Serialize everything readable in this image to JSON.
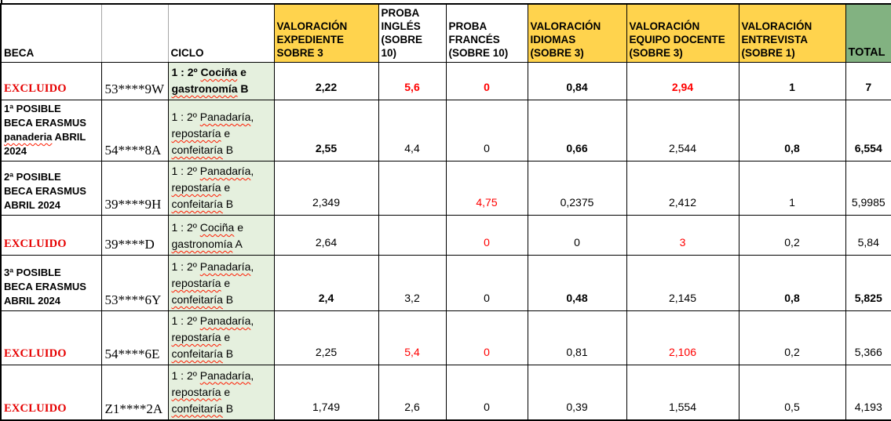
{
  "colors": {
    "header_yellow": "#FFD34D",
    "header_green": "#82B281",
    "ciclo_green": "#E5F0DE",
    "value_red": "#FF0000",
    "excluded_red": "#E60000",
    "text_black": "#000000"
  },
  "table": {
    "columns": [
      {
        "key": "beca",
        "label_lines": [
          "BECA"
        ],
        "bg": "#FFFFFF"
      },
      {
        "key": "id",
        "label_lines": [
          ""
        ],
        "bg": "#FFFFFF"
      },
      {
        "key": "ciclo",
        "label_lines": [
          "CICLO"
        ],
        "bg": "#FFFFFF"
      },
      {
        "key": "expediente",
        "label_lines": [
          "VALORACIÓN",
          "EXPEDIENTE",
          "SOBRE 3"
        ],
        "bg": "#FFD34D"
      },
      {
        "key": "ingles",
        "label_lines": [
          "PROBA",
          "INGLÉS",
          "(SOBRE",
          "10)"
        ],
        "bg": "#FFFFFF"
      },
      {
        "key": "frances",
        "label_lines": [
          "PROBA",
          "FRANCÉS",
          "(SOBRE 10)"
        ],
        "bg": "#FFFFFF"
      },
      {
        "key": "idiomas",
        "label_lines": [
          "VALORACIÓN",
          "IDIOMAS",
          "(SOBRE 3)"
        ],
        "bg": "#FFD34D"
      },
      {
        "key": "equipo",
        "label_lines": [
          "VALORACIÓN",
          "EQUIPO DOCENTE",
          "(SOBRE 3)"
        ],
        "bg": "#FFD34D"
      },
      {
        "key": "entrevista",
        "label_lines": [
          "VALORACIÓN",
          "ENTREVISTA",
          "(SOBRE 1)"
        ],
        "bg": "#FFD34D"
      },
      {
        "key": "total",
        "label_lines": [
          "TOTAL"
        ],
        "bg": "#82B281"
      }
    ],
    "rows": [
      {
        "beca": {
          "lines": [
            "EXCLUIDO"
          ],
          "excluded": true,
          "misspelled": []
        },
        "id": "53****9W",
        "ciclo": {
          "lines": [
            "1 : 2º Cociña e",
            "gastronomía B"
          ],
          "bold": true,
          "misspelled": [
            "Cociña",
            "gastronomía"
          ]
        },
        "scores": {
          "expediente": {
            "v": "2,22",
            "bold": true,
            "red": false
          },
          "ingles": {
            "v": "5,6",
            "bold": true,
            "red": true
          },
          "frances": {
            "v": "0",
            "bold": true,
            "red": true
          },
          "idiomas": {
            "v": "0,84",
            "bold": true,
            "red": false
          },
          "equipo": {
            "v": "2,94",
            "bold": true,
            "red": true
          },
          "entrevista": {
            "v": "1",
            "bold": true,
            "red": false
          },
          "total": {
            "v": "7",
            "bold": true,
            "red": false
          }
        }
      },
      {
        "beca": {
          "lines": [
            "1ª POSIBLE",
            "BECA ERASMUS",
            "panaderia ABRIL",
            "2024"
          ],
          "excluded": false,
          "misspelled": [
            "panaderia"
          ]
        },
        "id": "54****8A",
        "ciclo": {
          "lines": [
            "1 : 2º Panadaría,",
            "repostaría e",
            "confeitaría B"
          ],
          "bold": false,
          "misspelled": [
            "Panadaría",
            "repostaría",
            "confeitaría"
          ]
        },
        "scores": {
          "expediente": {
            "v": "2,55",
            "bold": true,
            "red": false
          },
          "ingles": {
            "v": "4,4",
            "bold": false,
            "red": false
          },
          "frances": {
            "v": "0",
            "bold": false,
            "red": false
          },
          "idiomas": {
            "v": "0,66",
            "bold": true,
            "red": false
          },
          "equipo": {
            "v": "2,544",
            "bold": false,
            "red": false
          },
          "entrevista": {
            "v": "0,8",
            "bold": true,
            "red": false
          },
          "total": {
            "v": "6,554",
            "bold": true,
            "red": false
          }
        }
      },
      {
        "beca": {
          "lines": [
            "2ª POSIBLE",
            "BECA ERASMUS",
            "ABRIL 2024"
          ],
          "excluded": false,
          "misspelled": []
        },
        "id": "39****9H",
        "ciclo": {
          "lines": [
            "1 : 2º Panadaría,",
            "repostaría e",
            "confeitaría B"
          ],
          "bold": false,
          "misspelled": [
            "Panadaría",
            "repostaría",
            "confeitaría"
          ]
        },
        "scores": {
          "expediente": {
            "v": "2,349",
            "bold": false,
            "red": false
          },
          "ingles": {
            "v": "",
            "bold": false,
            "red": false
          },
          "frances": {
            "v": "4,75",
            "bold": false,
            "red": true
          },
          "idiomas": {
            "v": "0,2375",
            "bold": false,
            "red": false
          },
          "equipo": {
            "v": "2,412",
            "bold": false,
            "red": false
          },
          "entrevista": {
            "v": "1",
            "bold": false,
            "red": false
          },
          "total": {
            "v": "5,9985",
            "bold": false,
            "red": false
          }
        }
      },
      {
        "beca": {
          "lines": [
            "EXCLUIDO"
          ],
          "excluded": true,
          "misspelled": []
        },
        "id": "39****D",
        "ciclo": {
          "lines": [
            "1 : 2º Cociña e",
            "gastronomía A"
          ],
          "bold": false,
          "misspelled": [
            "Cociña",
            "gastronomía"
          ]
        },
        "scores": {
          "expediente": {
            "v": "2,64",
            "bold": false,
            "red": false
          },
          "ingles": {
            "v": "",
            "bold": false,
            "red": false
          },
          "frances": {
            "v": "0",
            "bold": false,
            "red": true
          },
          "idiomas": {
            "v": "0",
            "bold": false,
            "red": false
          },
          "equipo": {
            "v": "3",
            "bold": false,
            "red": true
          },
          "entrevista": {
            "v": "0,2",
            "bold": false,
            "red": false
          },
          "total": {
            "v": "5,84",
            "bold": false,
            "red": false
          }
        }
      },
      {
        "beca": {
          "lines": [
            "3ª POSIBLE",
            "BECA ERASMUS",
            "ABRIL 2024"
          ],
          "excluded": false,
          "misspelled": []
        },
        "id": "53****6Y",
        "ciclo": {
          "lines": [
            "1 : 2º Panadaría,",
            "repostaría e",
            "confeitaría B"
          ],
          "bold": false,
          "misspelled": [
            "Panadaría",
            "repostaría",
            "confeitaría"
          ]
        },
        "scores": {
          "expediente": {
            "v": "2,4",
            "bold": true,
            "red": false
          },
          "ingles": {
            "v": "3,2",
            "bold": false,
            "red": false
          },
          "frances": {
            "v": "0",
            "bold": false,
            "red": false
          },
          "idiomas": {
            "v": "0,48",
            "bold": true,
            "red": false
          },
          "equipo": {
            "v": "2,145",
            "bold": false,
            "red": false
          },
          "entrevista": {
            "v": "0,8",
            "bold": true,
            "red": false
          },
          "total": {
            "v": "5,825",
            "bold": true,
            "red": false
          }
        }
      },
      {
        "beca": {
          "lines": [
            "EXCLUIDO"
          ],
          "excluded": true,
          "misspelled": []
        },
        "id": "54****6E",
        "ciclo": {
          "lines": [
            "1 : 2º Panadaría,",
            "repostaría e",
            "confeitaría B"
          ],
          "bold": false,
          "misspelled": [
            "Panadaría",
            "repostaría",
            "confeitaría"
          ]
        },
        "scores": {
          "expediente": {
            "v": "2,25",
            "bold": false,
            "red": false
          },
          "ingles": {
            "v": "5,4",
            "bold": false,
            "red": true
          },
          "frances": {
            "v": "0",
            "bold": false,
            "red": true
          },
          "idiomas": {
            "v": "0,81",
            "bold": false,
            "red": false
          },
          "equipo": {
            "v": "2,106",
            "bold": false,
            "red": true
          },
          "entrevista": {
            "v": "0,2",
            "bold": false,
            "red": false
          },
          "total": {
            "v": "5,366",
            "bold": false,
            "red": false
          }
        }
      },
      {
        "beca": {
          "lines": [
            "EXCLUIDO"
          ],
          "excluded": true,
          "misspelled": []
        },
        "id": "Z1****2A",
        "ciclo": {
          "lines": [
            "1 : 2º Panadaría,",
            "repostaría e",
            "confeitaría B"
          ],
          "bold": false,
          "misspelled": [
            "Panadaría",
            "repostaría",
            "confeitaría"
          ]
        },
        "scores": {
          "expediente": {
            "v": "1,749",
            "bold": false,
            "red": false
          },
          "ingles": {
            "v": "2,6",
            "bold": false,
            "red": false
          },
          "frances": {
            "v": "0",
            "bold": false,
            "red": false
          },
          "idiomas": {
            "v": "0,39",
            "bold": false,
            "red": false
          },
          "equipo": {
            "v": "1,554",
            "bold": false,
            "red": false
          },
          "entrevista": {
            "v": "0,5",
            "bold": false,
            "red": false
          },
          "total": {
            "v": "4,193",
            "bold": false,
            "red": false
          }
        }
      }
    ]
  }
}
